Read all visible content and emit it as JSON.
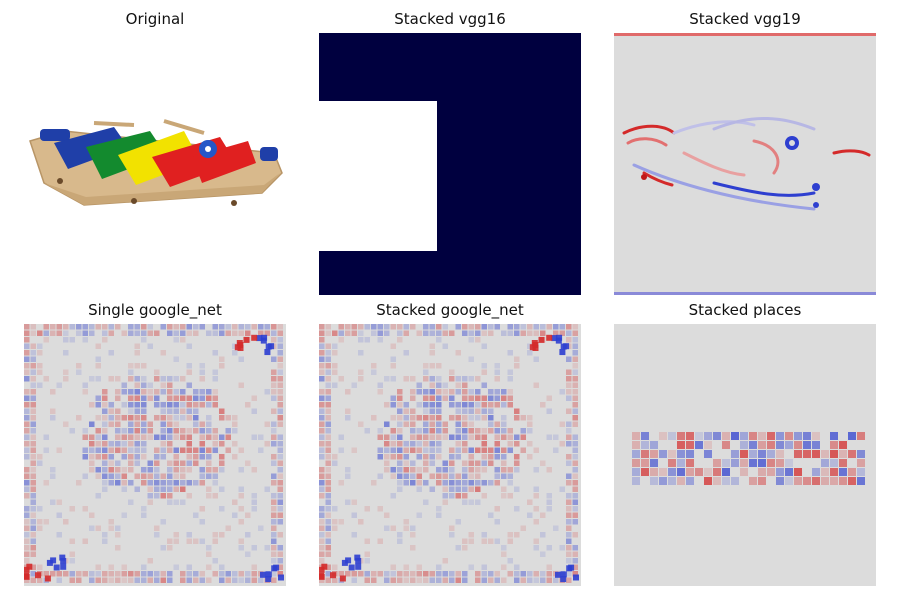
{
  "panels": [
    {
      "title": "Original"
    },
    {
      "title": "Stacked vgg16"
    },
    {
      "title": "Stacked vgg19"
    },
    {
      "title": "Single google_net"
    },
    {
      "title": "Stacked google_net"
    },
    {
      "title": "Stacked places"
    }
  ],
  "colors": {
    "navy": "#00003f",
    "heat_red": "#d42a2a",
    "heat_blue": "#2e3fd0",
    "heat_neutral": "#dcdcdc",
    "bar_blue": "#1f3fa8",
    "bar_green": "#138a2e",
    "bar_yellow": "#f2e200",
    "bar_red": "#e02020",
    "wood": "#d8b98c"
  }
}
